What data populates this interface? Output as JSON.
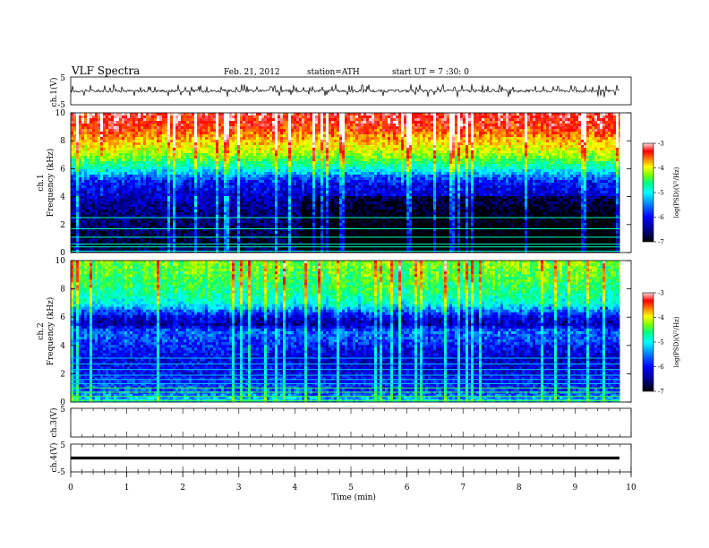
{
  "header": {
    "title": "VLF  Spectra",
    "date": "Feb. 21, 2012",
    "station": "station=ATH",
    "start": "start  UT  =   7  :30: 0"
  },
  "chart_data": [
    {
      "type": "line",
      "panel": "ch1-waveform",
      "ylabel": "ch.1(V)",
      "ylim": [
        -5,
        5
      ],
      "yticks": [
        "5",
        "-5"
      ],
      "x_range_min": [
        0,
        9.8
      ],
      "description_values": {
        "baseline_v": 0.0,
        "typical_amplitude_v": 0.5,
        "spike_peak_v": 2.4
      }
    },
    {
      "type": "heatmap",
      "panel": "ch1-spectrogram",
      "ylabel": "ch.1\nFrequency (kHz)",
      "ylabel_lines": [
        "ch.1",
        "Frequency  (kHz)"
      ],
      "ylim": [
        0,
        10
      ],
      "yticks": [
        "0",
        "2",
        "4",
        "6",
        "8",
        "10"
      ],
      "freq_band_levels_khz": [
        0,
        0.5,
        1,
        2,
        3,
        4,
        5,
        5.5,
        6,
        6.5,
        7,
        8,
        9,
        10
      ],
      "log_psd_by_band": [
        -6.6,
        -6.9,
        -6.8,
        -6.7,
        -6.6,
        -6.4,
        -6.2,
        -5.8,
        -5.3,
        -4.9,
        -4.5,
        -4.0,
        -3.5,
        -3.3
      ],
      "colorbar": {
        "label": "log(PSD)(V²/Hz)",
        "range": [
          -7,
          -3
        ],
        "ticks": [
          "-3",
          "-4",
          "-5",
          "-6",
          "-7"
        ]
      }
    },
    {
      "type": "heatmap",
      "panel": "ch2-spectrogram",
      "ylabel_lines": [
        "ch.2",
        "Frequency  (kHz)"
      ],
      "ylim": [
        0,
        10
      ],
      "yticks": [
        "0",
        "2",
        "4",
        "6",
        "8",
        "10"
      ],
      "freq_band_levels_khz": [
        0,
        0.5,
        1,
        2,
        3,
        4,
        5,
        5.5,
        6,
        6.5,
        7,
        8,
        9,
        10
      ],
      "log_psd_by_band": [
        -5.4,
        -5.8,
        -6.0,
        -6.2,
        -6.3,
        -6.1,
        -5.9,
        -6.5,
        -6.3,
        -5.8,
        -5.3,
        -5.0,
        -4.8,
        -4.6
      ],
      "colorbar": {
        "label": "log(PSD)(V²/Hz)",
        "range": [
          -7,
          -3
        ],
        "ticks": [
          "-3",
          "-4",
          "-5",
          "-6",
          "-7"
        ]
      }
    },
    {
      "type": "line",
      "panel": "ch3-waveform",
      "ylabel": "ch.3(V)",
      "ylim": [
        -5,
        5
      ],
      "yticks": [
        "5"
      ],
      "values_note": "no signal"
    },
    {
      "type": "line",
      "panel": "ch4-waveform",
      "ylabel": "ch.4(V)",
      "ylim": [
        -5,
        5
      ],
      "yticks": [
        "5",
        "-5"
      ],
      "constant_value_v": 0.0,
      "x_range_min": [
        0,
        9.8
      ]
    }
  ],
  "x_axis": {
    "label": "Time  (min)",
    "range": [
      0,
      10
    ],
    "ticks": [
      "0",
      "1",
      "2",
      "3",
      "4",
      "5",
      "6",
      "7",
      "8",
      "9",
      "10"
    ]
  },
  "colors": {
    "colormap": [
      "#000000",
      "#00008b",
      "#0000ff",
      "#0080ff",
      "#00ffff",
      "#00ff80",
      "#80ff00",
      "#ffff00",
      "#ff8000",
      "#ff0000",
      "#ffffff"
    ]
  }
}
